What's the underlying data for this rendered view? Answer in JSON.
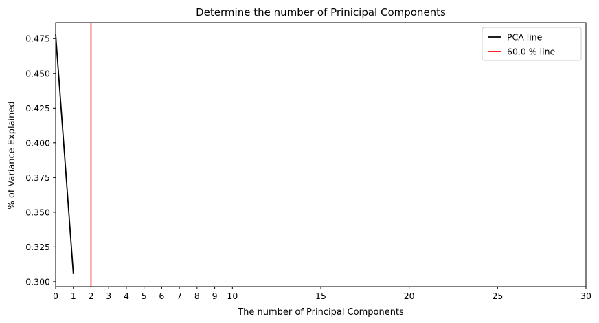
{
  "chart_data": {
    "type": "line",
    "title": "Determine the number of Prinicipal Components",
    "xlabel": "The number of Principal Components",
    "ylabel": "% of Variance Explained",
    "xlim": [
      0,
      30
    ],
    "ylim": [
      0.2965,
      0.4865
    ],
    "xticks": [
      0,
      1,
      2,
      3,
      4,
      5,
      6,
      7,
      8,
      9,
      10,
      15,
      20,
      25,
      30
    ],
    "yticks": [
      0.3,
      0.325,
      0.35,
      0.375,
      0.4,
      0.425,
      0.45,
      0.475
    ],
    "ytick_labels": [
      "0.300",
      "0.325",
      "0.350",
      "0.375",
      "0.400",
      "0.425",
      "0.450",
      "0.475"
    ],
    "grid": false,
    "legend_position": "top-right",
    "series": [
      {
        "name": "PCA line",
        "color": "#000000",
        "x": [
          0,
          1
        ],
        "y": [
          0.478,
          0.306
        ]
      }
    ],
    "vlines": [
      {
        "name": "60.0 % line",
        "color": "#ff0000",
        "x": 2
      }
    ]
  }
}
